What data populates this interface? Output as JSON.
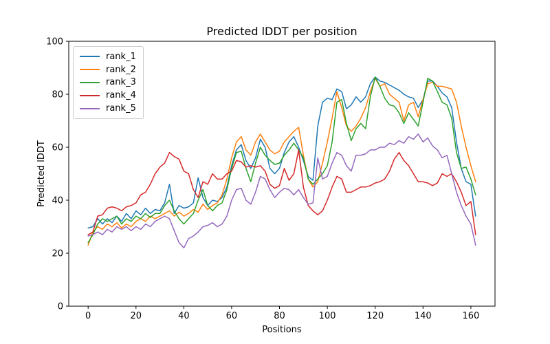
{
  "chart_data": {
    "type": "line",
    "title": "Predicted lDDT per position",
    "xlabel": "Positions",
    "ylabel": "Predicted lDDT",
    "xlim": [
      -8.1,
      170.1
    ],
    "ylim": [
      0,
      100
    ],
    "x_ticks": [
      0,
      20,
      40,
      60,
      80,
      100,
      120,
      140,
      160
    ],
    "y_ticks": [
      0,
      20,
      40,
      60,
      80,
      100
    ],
    "grid": false,
    "legend_position": "upper left",
    "x_start": 0,
    "x_step": 2,
    "series": [
      {
        "name": "rank_1",
        "color": "#1f77b4",
        "values": [
          29.5,
          30,
          33,
          31,
          33,
          31.5,
          34,
          32,
          35,
          33,
          36,
          34.5,
          37,
          35,
          36.5,
          36,
          39,
          46,
          35,
          38,
          37,
          37.5,
          39,
          48.5,
          41,
          38,
          40,
          39.5,
          41,
          45,
          53,
          59,
          61,
          55,
          52,
          56,
          63,
          60,
          52,
          50,
          52,
          58,
          62,
          64,
          60,
          55,
          49,
          47.5,
          68,
          77,
          78.5,
          78,
          82,
          81,
          74.5,
          76,
          79,
          77,
          79,
          84,
          86.5,
          85,
          84.5,
          83.5,
          82.5,
          81.5,
          80,
          79,
          78.5,
          75,
          78,
          85,
          85,
          83,
          80.5,
          79,
          75,
          62,
          52,
          47,
          46,
          34
        ]
      },
      {
        "name": "rank_2",
        "color": "#ff7f0e",
        "values": [
          23,
          28,
          30,
          29,
          31,
          30,
          31.5,
          29.5,
          31,
          30,
          32,
          33,
          32,
          34,
          33,
          34,
          35,
          36,
          34,
          35.5,
          34,
          35,
          36.5,
          35.5,
          38.5,
          36.5,
          38,
          39,
          42,
          48,
          56,
          62,
          64,
          59,
          57,
          62,
          65,
          62,
          59,
          57.5,
          58.5,
          62,
          64,
          66,
          67.5,
          57,
          48,
          45,
          47,
          54,
          62,
          71,
          81,
          75,
          68,
          66,
          68,
          71,
          75,
          81,
          86,
          83,
          84,
          80,
          78.5,
          77,
          70,
          76,
          77,
          71.5,
          78,
          84,
          84.5,
          83,
          83,
          82.5,
          82,
          77,
          68,
          60,
          53,
          47
        ]
      },
      {
        "name": "rank_3",
        "color": "#2ca02c",
        "values": [
          24,
          27,
          31,
          33,
          32,
          33,
          34,
          31,
          33,
          32,
          34,
          33,
          35,
          33.5,
          35,
          35,
          38,
          40,
          36,
          33,
          31,
          33,
          35,
          40,
          44,
          38,
          36,
          38,
          39,
          44,
          52,
          58,
          58.5,
          52,
          47,
          54,
          60,
          57,
          55,
          53.5,
          54,
          57,
          59,
          61.5,
          59,
          56,
          48,
          46,
          48,
          50,
          53,
          62,
          77,
          78,
          69,
          62.5,
          67,
          69,
          67,
          79,
          86.5,
          83,
          78.5,
          76,
          75.5,
          73,
          69,
          73,
          70.5,
          68,
          77,
          86,
          85,
          81,
          77,
          76,
          71,
          58,
          52,
          52.5,
          48,
          42
        ]
      },
      {
        "name": "rank_4",
        "color": "#d62728",
        "values": [
          27,
          28,
          34,
          34.5,
          37,
          37.5,
          37,
          36,
          37.5,
          38,
          39,
          42,
          43,
          46,
          50,
          52.5,
          54,
          58,
          56.5,
          55.5,
          51,
          50,
          44,
          41,
          47,
          46,
          50,
          48,
          48,
          50,
          51,
          55,
          54.5,
          52.5,
          53,
          52.5,
          53,
          51,
          46,
          44.5,
          45.5,
          52,
          47.5,
          50,
          59,
          45,
          38,
          36,
          34.5,
          36,
          40,
          45,
          49,
          48,
          43,
          43,
          44,
          45,
          45,
          45.5,
          46.5,
          47,
          48,
          51,
          55.5,
          58,
          55,
          53,
          50,
          47,
          47,
          46.5,
          45.5,
          46.5,
          50,
          49,
          50,
          47,
          43,
          38,
          39.5,
          27
        ]
      },
      {
        "name": "rank_5",
        "color": "#9467bd",
        "values": [
          26.5,
          27,
          28,
          27,
          29,
          28,
          30,
          29,
          30,
          28.5,
          30,
          29,
          31,
          30,
          32,
          33,
          34,
          33,
          28.5,
          24,
          22,
          25.5,
          26.5,
          28,
          30,
          30.5,
          31.5,
          30,
          31,
          34,
          40,
          44,
          44.5,
          40,
          38.5,
          43,
          49,
          48,
          44,
          41,
          43,
          44.5,
          44,
          42,
          44,
          41,
          38.5,
          39,
          56,
          48,
          49,
          54,
          58,
          57,
          53,
          51,
          57,
          57,
          57.5,
          59,
          59,
          60,
          60,
          61.5,
          61,
          62.5,
          61.5,
          64,
          63,
          65,
          62,
          63.5,
          60.5,
          59,
          56,
          57,
          50,
          43,
          38,
          34,
          31,
          23
        ]
      }
    ]
  }
}
